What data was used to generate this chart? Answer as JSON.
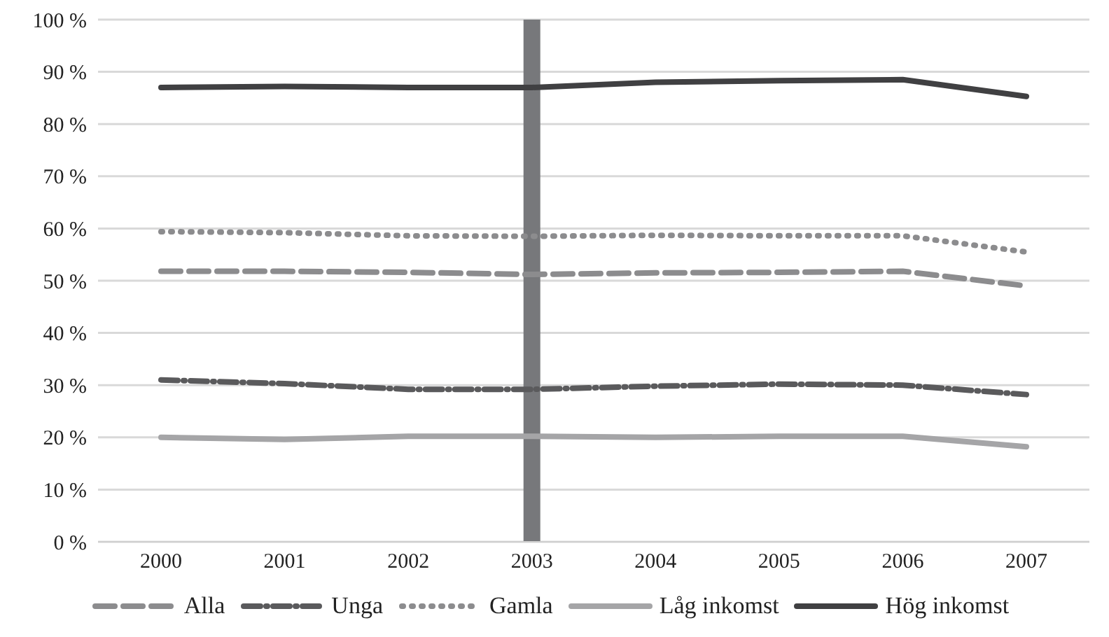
{
  "chart_data": {
    "type": "line",
    "categories": [
      "2000",
      "2001",
      "2002",
      "2003",
      "2004",
      "2005",
      "2006",
      "2007"
    ],
    "series": [
      {
        "name": "Alla",
        "color": "#8c8c8e",
        "line_style": "dashed",
        "values": [
          51.8,
          51.8,
          51.6,
          51.2,
          51.5,
          51.6,
          51.8,
          49
        ]
      },
      {
        "name": "Unga",
        "color": "#5a5a5c",
        "line_style": "dashdot",
        "values": [
          31,
          30.3,
          29.2,
          29.2,
          29.8,
          30.2,
          30,
          28.2
        ]
      },
      {
        "name": "Gamla",
        "color": "#8c8c8e",
        "line_style": "dotted",
        "values": [
          59.4,
          59.2,
          58.6,
          58.5,
          58.7,
          58.6,
          58.6,
          55.5
        ]
      },
      {
        "name": "Låg inkomst",
        "color": "#a5a5a7",
        "line_style": "solid",
        "values": [
          20,
          19.6,
          20.2,
          20.2,
          20,
          20.2,
          20.2,
          18.2
        ]
      },
      {
        "name": "Hög inkomst",
        "color": "#404042",
        "line_style": "solid",
        "values": [
          87,
          87.2,
          87,
          87,
          88,
          88.3,
          88.5,
          85.3
        ]
      }
    ],
    "ylim": [
      0,
      100
    ],
    "yticks": [
      {
        "value": 0,
        "label": "0 %"
      },
      {
        "value": 10,
        "label": "10 %"
      },
      {
        "value": 20,
        "label": "20 %"
      },
      {
        "value": 30,
        "label": "30 %"
      },
      {
        "value": 40,
        "label": "40 %"
      },
      {
        "value": 50,
        "label": "50 %"
      },
      {
        "value": 60,
        "label": "60 %"
      },
      {
        "value": 70,
        "label": "70 %"
      },
      {
        "value": 80,
        "label": "80 %"
      },
      {
        "value": 90,
        "label": "90 %"
      },
      {
        "value": 100,
        "label": "100 %"
      }
    ],
    "ref_lines": [
      {
        "axis": "x",
        "value": "2003",
        "color": "#77787b"
      }
    ],
    "grid": "y",
    "legend": "bottom",
    "marker": "none"
  }
}
